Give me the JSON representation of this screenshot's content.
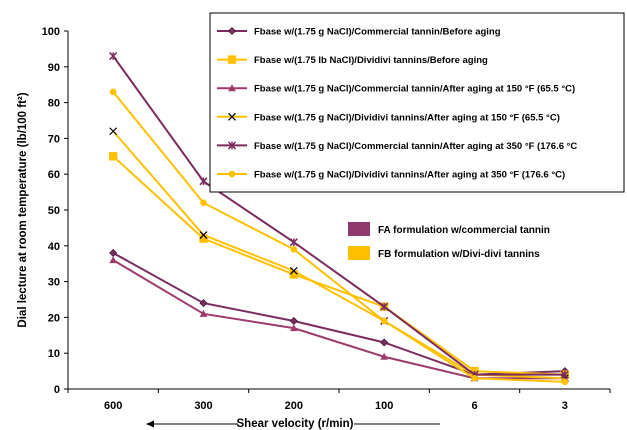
{
  "chart_data": {
    "type": "line",
    "xlabel": "Shear velocity (r/min)",
    "ylabel": "Dial lecture at room temperature (lb/100 ft²)",
    "ylim": [
      0,
      100
    ],
    "y_ticks": [
      "0",
      "10",
      "20",
      "30",
      "40",
      "50",
      "60",
      "70",
      "80",
      "90",
      "100"
    ],
    "categories": [
      "600",
      "300",
      "200",
      "100",
      "6",
      "3"
    ],
    "grid": false,
    "legend_position": "top-right",
    "series": [
      {
        "name": "Fbase w/(1.75 g NaCl)/Commercial tannin/Before aging",
        "color": "#7B2C5E",
        "marker": "diamond",
        "values": [
          38,
          24,
          19,
          13,
          4,
          5
        ]
      },
      {
        "name": "Fbase w/(1.75 lb NaCl)/Dividivi tannins/Before aging",
        "color": "#FFC000",
        "marker": "square",
        "values": [
          65,
          42,
          32,
          23,
          5,
          4
        ]
      },
      {
        "name": "Fbase w/(1.75 g NaCl)/Commercial tannin/After aging at 150 °F (65.5 °C)",
        "color": "#9E3A6E",
        "marker": "triangle",
        "values": [
          36,
          21,
          17,
          9,
          3,
          3
        ]
      },
      {
        "name": "Fbase w/(1.75 g NaCl)/Dividivi tannins/After aging at 150 °F (65.5 °C)",
        "color": "#FFC000",
        "marker": "x",
        "values": [
          72,
          43,
          33,
          19,
          4,
          3
        ]
      },
      {
        "name": "Fbase w/(1.75 g NaCl)/Commercial tannin/After aging at 350 °F (176.6 °C",
        "color": "#7B2C5E",
        "marker": "star",
        "values": [
          93,
          58,
          41,
          23,
          4,
          4
        ]
      },
      {
        "name": "Fbase w/(1.75 g NaCl)/Dividivi tannins/After aging at 350 °F (176.6 °C)",
        "color": "#FFC000",
        "marker": "circle",
        "values": [
          83,
          52,
          39,
          19,
          3,
          2
        ]
      }
    ],
    "formulation_legend": [
      {
        "label": "FA formulation w/commercial tannin",
        "color": "#8E3A6E"
      },
      {
        "label": "FB formulation w/Divi-divi tannins",
        "color": "#FFC000"
      }
    ]
  }
}
